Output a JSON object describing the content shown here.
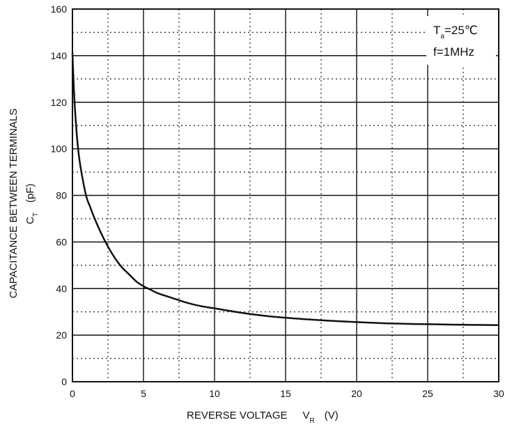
{
  "chart_data": {
    "type": "line",
    "title": "",
    "xlabel": {
      "main": "REVERSE VOLTAGE",
      "symbol": "V",
      "subscript": "R",
      "unit": "(V)"
    },
    "ylabel": {
      "main": "CAPACITANCE BETWEEN TERMINALS",
      "symbol": "C",
      "subscript": "T",
      "unit": "(pF)"
    },
    "xlim": [
      0,
      30
    ],
    "ylim": [
      0,
      160
    ],
    "x_ticks": [
      0,
      5,
      10,
      15,
      20,
      25,
      30
    ],
    "y_ticks": [
      0,
      20,
      40,
      60,
      80,
      100,
      120,
      140,
      160
    ],
    "x_tick_labels": [
      "0",
      "5",
      "10",
      "15",
      "20",
      "25",
      "30"
    ],
    "y_tick_labels": [
      "0",
      "20",
      "40",
      "60",
      "80",
      "100",
      "120",
      "140",
      "160"
    ],
    "major_grid": "solid",
    "minor_grid": "dotted",
    "x_minor_step": 2.5,
    "y_minor_step": 10,
    "annotations": [
      {
        "symbol": "T",
        "subscript": "a",
        "text": "=25℃"
      },
      {
        "text": "f=1MHz"
      }
    ],
    "series": [
      {
        "x": [
          0,
          0.1,
          0.2,
          0.35,
          0.5,
          0.75,
          1,
          1.25,
          1.5,
          2,
          2.5,
          3,
          3.5,
          4,
          4.5,
          5,
          5.5,
          6,
          7,
          8,
          9,
          10,
          12,
          14,
          16,
          18,
          20,
          22,
          24,
          26,
          28,
          30
        ],
        "values": [
          141,
          126,
          115,
          103,
          95,
          86,
          79,
          75,
          71,
          64,
          58,
          53,
          49,
          46,
          43,
          41,
          39.5,
          38,
          36,
          34,
          32.5,
          31.5,
          29.5,
          28,
          27,
          26.2,
          25.6,
          25.1,
          24.8,
          24.6,
          24.4,
          24.3
        ]
      }
    ]
  }
}
